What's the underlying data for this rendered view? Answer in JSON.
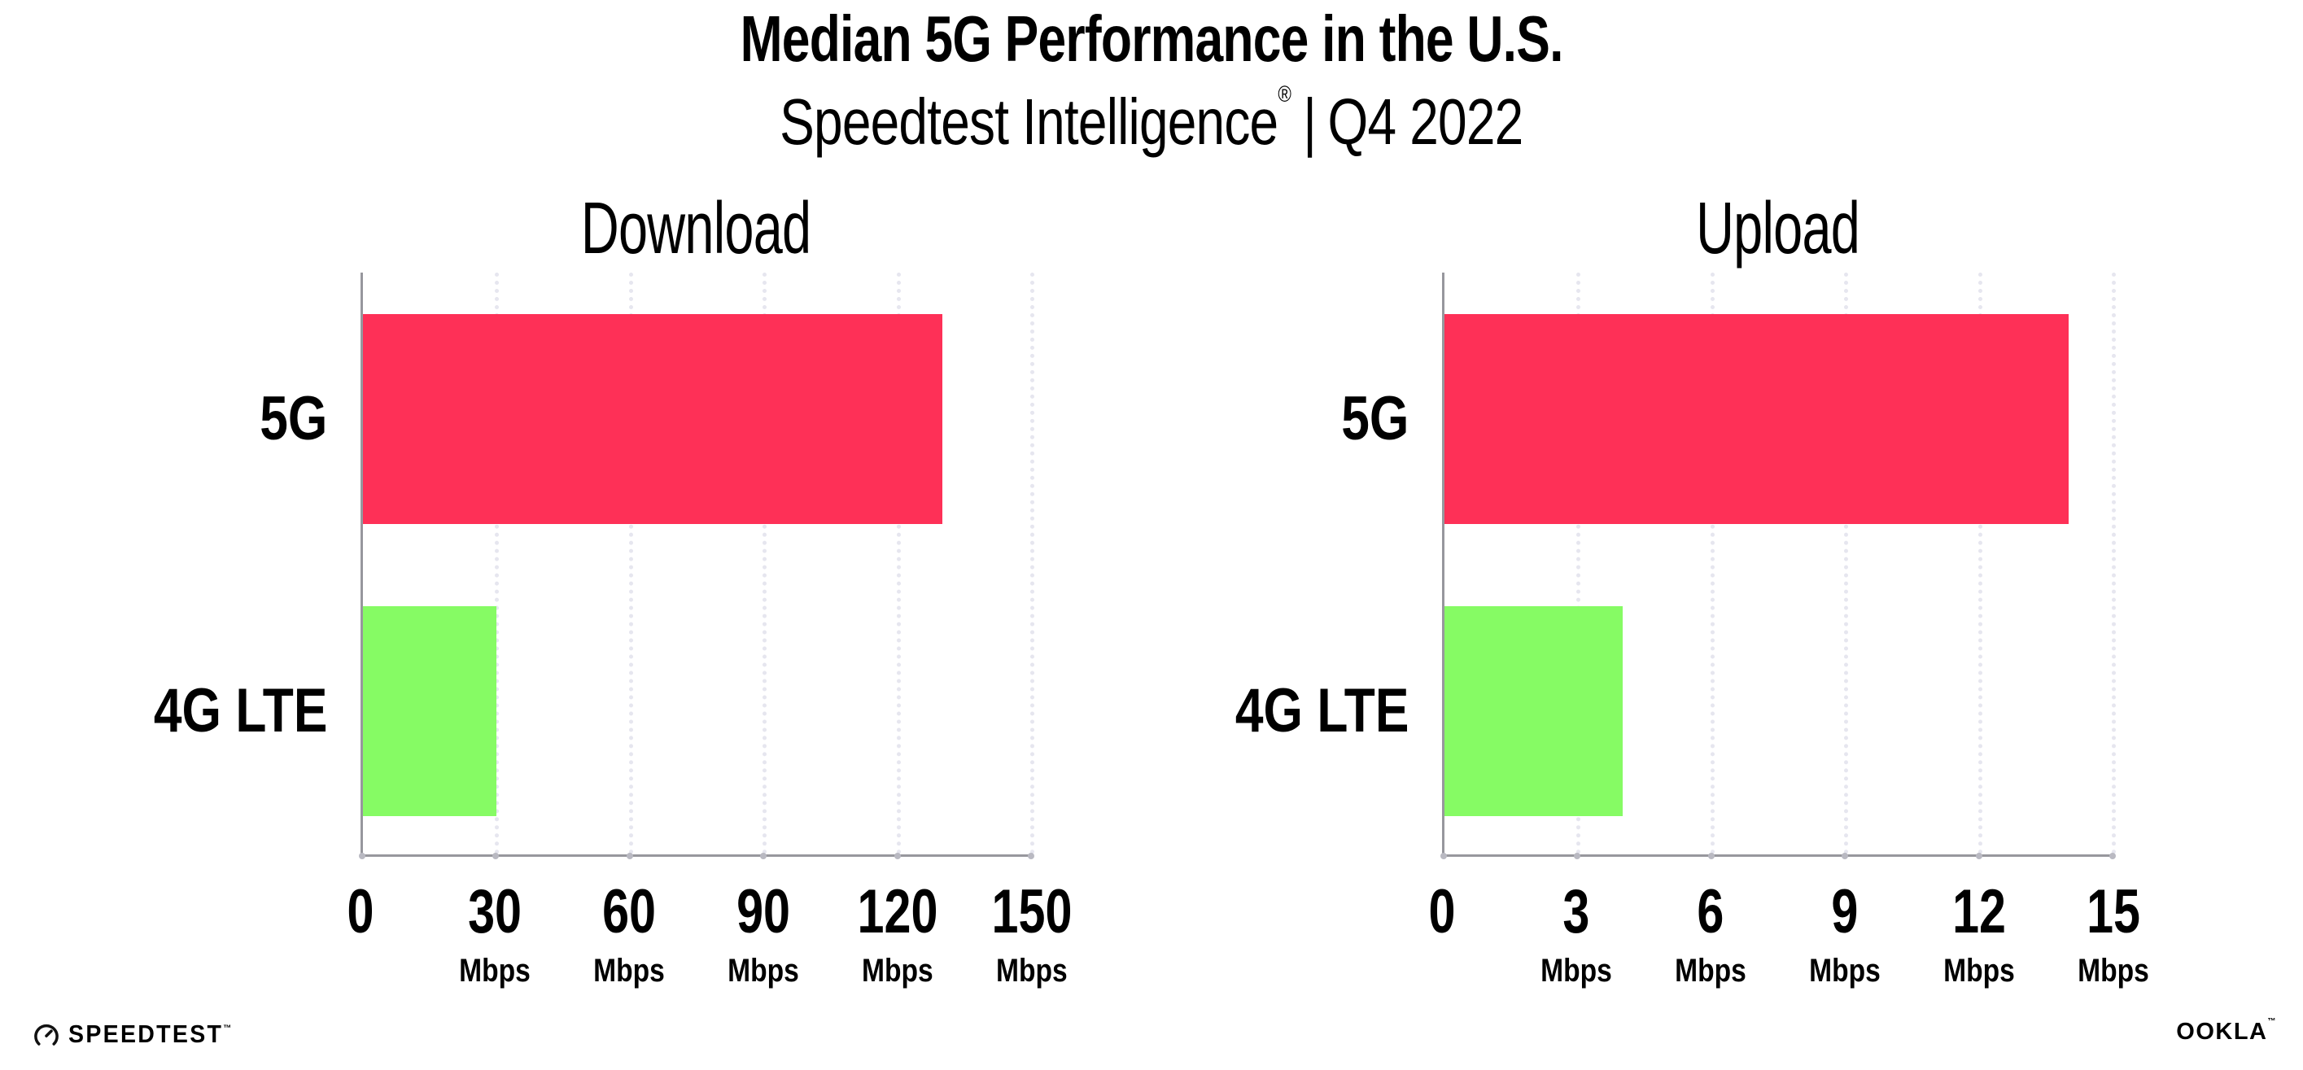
{
  "header": {
    "title": "Median 5G Performance in the U.S.",
    "subtitle": {
      "brand": "Speedtest Intelligence",
      "registered_mark": "®",
      "separator": "|",
      "period": "Q4 2022"
    }
  },
  "chart_data": [
    {
      "type": "bar",
      "orientation": "horizontal",
      "title": "Download",
      "categories": [
        "5G",
        "4G LTE"
      ],
      "values": [
        130,
        30
      ],
      "value_unit": "Mbps",
      "xlim": [
        0,
        150
      ],
      "ticks": [
        0,
        30,
        60,
        90,
        120,
        150
      ],
      "tick_unit": "Mbps",
      "grid": "vertical-dotted",
      "legend": "none"
    },
    {
      "type": "bar",
      "orientation": "horizontal",
      "title": "Upload",
      "categories": [
        "5G",
        "4G LTE"
      ],
      "values": [
        14,
        4
      ],
      "value_unit": "Mbps",
      "xlim": [
        0,
        15
      ],
      "ticks": [
        0,
        3,
        6,
        9,
        12,
        15
      ],
      "tick_unit": "Mbps",
      "grid": "vertical-dotted",
      "legend": "none"
    }
  ],
  "colors": {
    "series": [
      "#FE3057",
      "#86FB64"
    ],
    "series_names": [
      "5G",
      "4G LTE"
    ],
    "axis_line": "#97979D",
    "gridline": "#E6E6EF",
    "tick_dot": "#B9B9C2",
    "text": "#000000",
    "background": "#FFFFFF"
  },
  "footer": {
    "speedtest_wordmark": "SPEEDTEST",
    "speedtest_trademark": "™",
    "ookla_wordmark": "OOKLA",
    "ookla_trademark": "™"
  }
}
